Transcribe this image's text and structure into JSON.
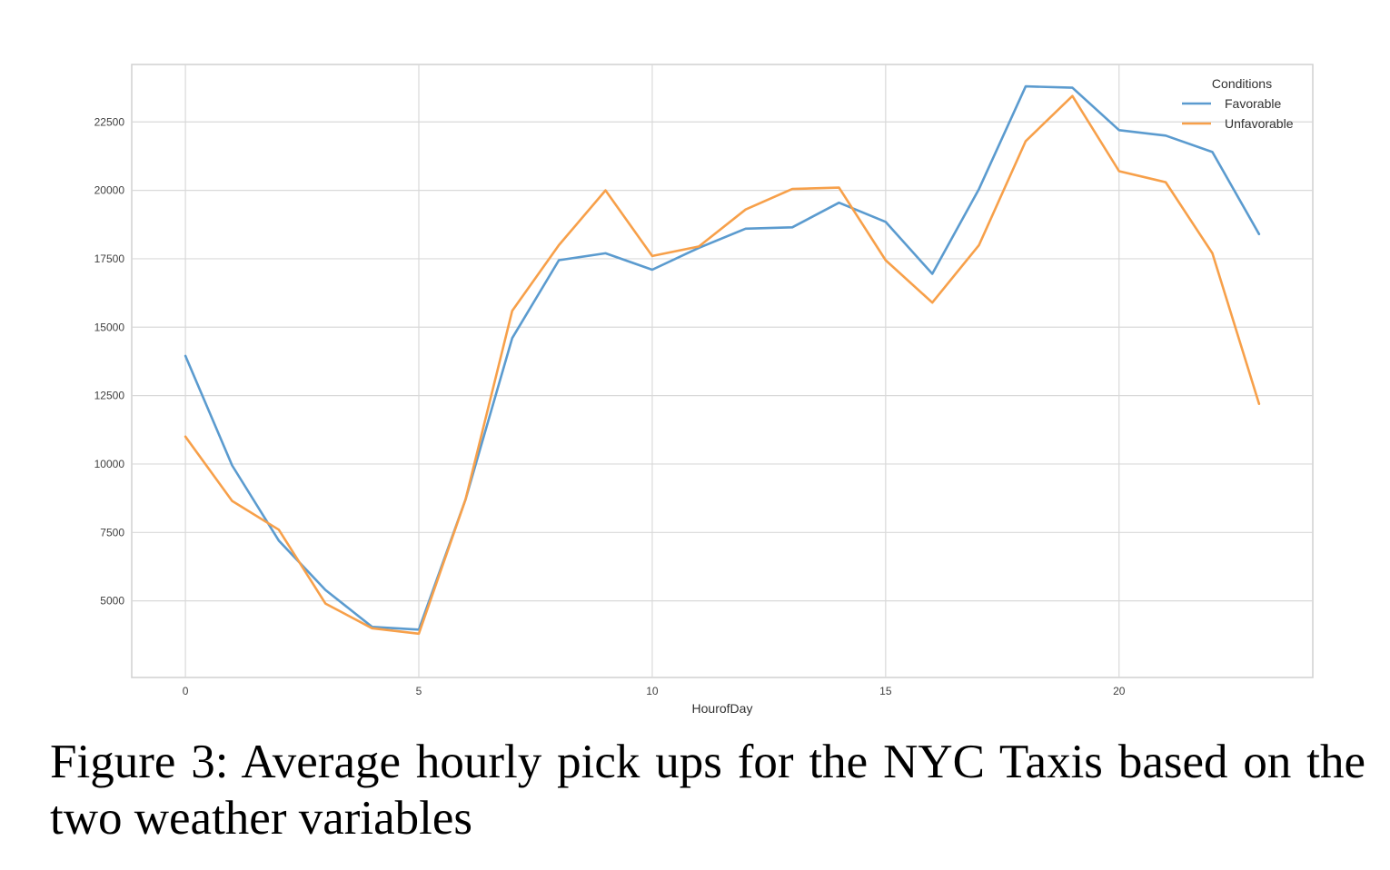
{
  "caption": "Figure 3: Average hourly pick ups for the NYC Taxis based on the two weather variables",
  "chart_data": {
    "type": "line",
    "xlabel": "HourofDay",
    "ylabel": "",
    "x": [
      0,
      1,
      2,
      3,
      4,
      5,
      6,
      7,
      8,
      9,
      10,
      11,
      12,
      13,
      14,
      15,
      16,
      17,
      18,
      19,
      20,
      21,
      22,
      23
    ],
    "xlim": [
      -1.15,
      24.15
    ],
    "ylim": [
      2200,
      24600
    ],
    "xticks": [
      0,
      5,
      10,
      15,
      20
    ],
    "yticks": [
      5000,
      7500,
      10000,
      12500,
      15000,
      17500,
      20000,
      22500
    ],
    "grid": true,
    "legend_title": "Conditions",
    "legend_position": "top-right",
    "series": [
      {
        "name": "Favorable",
        "color": "#5b9bcf",
        "values": [
          13950,
          9950,
          7200,
          5400,
          4050,
          3950,
          8700,
          14600,
          17450,
          17700,
          17100,
          17900,
          18600,
          18650,
          19550,
          18850,
          16950,
          20050,
          23800,
          23750,
          22200,
          22000,
          21400,
          18400
        ]
      },
      {
        "name": "Unfavorable",
        "color": "#f7a04a",
        "values": [
          11000,
          8650,
          7600,
          4900,
          4000,
          3800,
          8700,
          15600,
          18000,
          20000,
          17600,
          17950,
          19300,
          20050,
          20100,
          17450,
          15900,
          18000,
          21800,
          23450,
          20700,
          20300,
          17700,
          12200
        ]
      }
    ]
  }
}
